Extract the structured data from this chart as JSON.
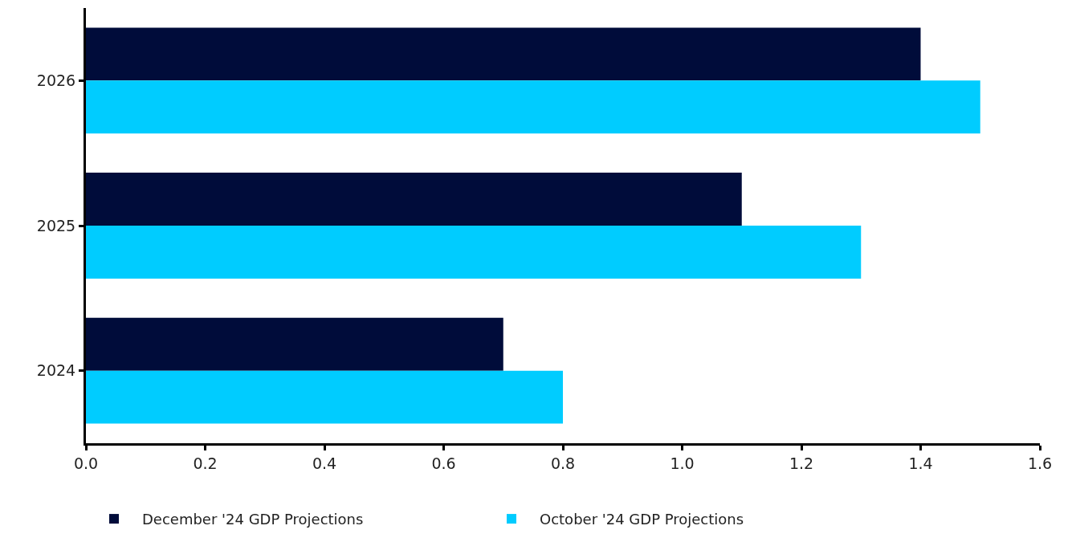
{
  "chart_data": {
    "type": "bar",
    "orientation": "horizontal",
    "categories": [
      "2026",
      "2025",
      "2024"
    ],
    "series": [
      {
        "name": "December '24 GDP Projections",
        "color": "#000c3a",
        "values": [
          1.4,
          1.1,
          0.7
        ]
      },
      {
        "name": "October '24 GDP Projections",
        "color": "#00ccff",
        "values": [
          1.5,
          1.3,
          0.8
        ]
      }
    ],
    "xlim": [
      0,
      1.6
    ],
    "xticks": [
      {
        "value": 0,
        "label": "0.0"
      },
      {
        "value": 0.2,
        "label": "0.2"
      },
      {
        "value": 0.4,
        "label": "0.4"
      },
      {
        "value": 0.6,
        "label": "0.6"
      },
      {
        "value": 0.8,
        "label": "0.8"
      },
      {
        "value": 1,
        "label": "1.0"
      },
      {
        "value": 1.2,
        "label": "1.2"
      },
      {
        "value": 1.4,
        "label": "1.4"
      },
      {
        "value": 1.6,
        "label": "1.6"
      }
    ],
    "grid": false,
    "legend": "bottom left"
  }
}
